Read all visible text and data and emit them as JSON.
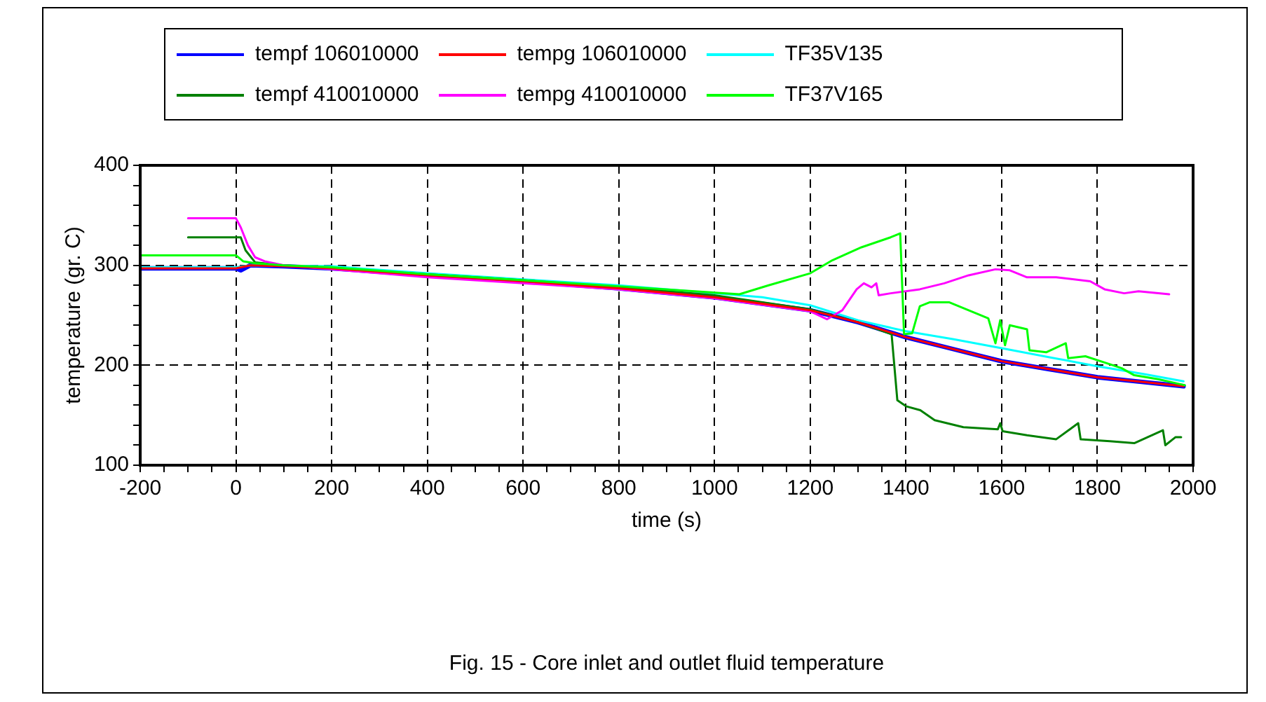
{
  "chart_data": {
    "type": "line",
    "xlabel": "time (s)",
    "ylabel": "temperature (gr. C)",
    "annotations": [
      "Fig. 15 - Core inlet and outlet fluid temperature"
    ],
    "xlim": [
      -200,
      2000
    ],
    "ylim": [
      100,
      400
    ],
    "xticks": [
      -200,
      {
        "value": -150,
        "label": null
      },
      {
        "value": -100,
        "label": null
      },
      {
        "value": -50,
        "label": null
      },
      0,
      {
        "value": 50,
        "label": null
      },
      {
        "value": 100,
        "label": null
      },
      {
        "value": 150,
        "label": null
      },
      200,
      {
        "value": 250,
        "label": null
      },
      {
        "value": 300,
        "label": null
      },
      {
        "value": 350,
        "label": null
      },
      400,
      {
        "value": 450,
        "label": null
      },
      {
        "value": 500,
        "label": null
      },
      {
        "value": 550,
        "label": null
      },
      600,
      {
        "value": 650,
        "label": null
      },
      {
        "value": 700,
        "label": null
      },
      {
        "value": 750,
        "label": null
      },
      800,
      {
        "value": 850,
        "label": null
      },
      {
        "value": 900,
        "label": null
      },
      {
        "value": 950,
        "label": null
      },
      1000,
      {
        "value": 1050,
        "label": null
      },
      {
        "value": 1100,
        "label": null
      },
      {
        "value": 1150,
        "label": null
      },
      1200,
      {
        "value": 1250,
        "label": null
      },
      {
        "value": 1300,
        "label": null
      },
      {
        "value": 1350,
        "label": null
      },
      1400,
      {
        "value": 1450,
        "label": null
      },
      {
        "value": 1500,
        "label": null
      },
      {
        "value": 1550,
        "label": null
      },
      1600,
      {
        "value": 1650,
        "label": null
      },
      {
        "value": 1700,
        "label": null
      },
      {
        "value": 1750,
        "label": null
      },
      1800,
      {
        "value": 1850,
        "label": null
      },
      {
        "value": 1900,
        "label": null
      },
      {
        "value": 1950,
        "label": null
      },
      2000
    ],
    "yticks": [
      100,
      {
        "value": 120,
        "label": null
      },
      {
        "value": 140,
        "label": null
      },
      {
        "value": 160,
        "label": null
      },
      {
        "value": 180,
        "label": null
      },
      200,
      {
        "value": 220,
        "label": null
      },
      {
        "value": 240,
        "label": null
      },
      {
        "value": 260,
        "label": null
      },
      {
        "value": 280,
        "label": null
      },
      300,
      {
        "value": 320,
        "label": null
      },
      {
        "value": 340,
        "label": null
      },
      {
        "value": 360,
        "label": null
      },
      {
        "value": 380,
        "label": null
      },
      400
    ],
    "grid": true,
    "legend": "top",
    "marker": "none",
    "line_style": "solid",
    "series": [
      {
        "name": "tempf 106010000",
        "color": "#0000ff",
        "x": [
          -200,
          0,
          10,
          30,
          100,
          200,
          400,
          600,
          800,
          1000,
          1200,
          1300,
          1400,
          1500,
          1600,
          1700,
          1800,
          1900,
          1980
        ],
        "values": [
          297,
          297,
          295,
          300,
          299,
          297,
          290,
          284,
          277,
          268,
          255,
          243,
          228,
          216,
          204,
          196,
          188,
          183,
          179
        ]
      },
      {
        "name": "tempg 106010000",
        "color": "#ff0000",
        "x": [
          -200,
          0,
          30,
          100,
          200,
          400,
          600,
          800,
          1000,
          1200,
          1300,
          1400,
          1500,
          1600,
          1700,
          1800,
          1900,
          1980
        ],
        "values": [
          297,
          297,
          300,
          299,
          297,
          290,
          284,
          277,
          268,
          255,
          243,
          228,
          216,
          204,
          196,
          188,
          183,
          179
        ]
      },
      {
        "name": "TF35V135",
        "color": "#00ffff",
        "x": [
          -200,
          0,
          30,
          200,
          400,
          600,
          800,
          1000,
          1100,
          1200,
          1300,
          1400,
          1500,
          1600,
          1700,
          1800,
          1900,
          1980
        ],
        "values": [
          298,
          298,
          300,
          299,
          292,
          286,
          280,
          272,
          268,
          260,
          245,
          234,
          226,
          217,
          208,
          199,
          191,
          184
        ]
      },
      {
        "name": "tempf 410010000",
        "color": "#008000",
        "x": [
          -100,
          10,
          20,
          40,
          100,
          200,
          400,
          600,
          800,
          1000,
          1200,
          1300,
          1370,
          1382,
          1400,
          1430,
          1460,
          1520,
          1592,
          1597,
          1602,
          1653,
          1714,
          1760,
          1765,
          1826,
          1877,
          1937,
          1942,
          1963,
          1975
        ],
        "values": [
          328,
          328,
          315,
          303,
          300,
          297,
          291,
          285,
          278,
          270,
          256,
          243,
          231,
          165,
          159,
          155,
          145,
          138,
          136,
          142,
          134,
          130,
          126,
          142,
          126,
          124,
          122,
          135,
          120,
          128,
          128
        ]
      },
      {
        "name": "tempg 410010000",
        "color": "#ff00ff",
        "x": [
          -100,
          0,
          10,
          25,
          40,
          60,
          100,
          200,
          400,
          600,
          800,
          1000,
          1200,
          1235,
          1267,
          1297,
          1312,
          1328,
          1338,
          1343,
          1368,
          1429,
          1480,
          1531,
          1587,
          1617,
          1653,
          1714,
          1785,
          1815,
          1856,
          1886,
          1950
        ],
        "values": [
          347,
          347,
          338,
          320,
          308,
          304,
          300,
          296,
          288,
          282,
          276,
          267,
          254,
          246,
          255,
          276,
          282,
          278,
          282,
          270,
          272,
          276,
          282,
          290,
          296,
          295,
          288,
          288,
          284,
          276,
          272,
          274,
          271
        ]
      },
      {
        "name": "TF37V165",
        "color": "#00ff00",
        "x": [
          -200,
          0,
          15,
          40,
          100,
          200,
          400,
          600,
          800,
          1052,
          1113,
          1200,
          1246,
          1307,
          1368,
          1388,
          1396,
          1413,
          1429,
          1450,
          1490,
          1531,
          1572,
          1587,
          1597,
          1607,
          1617,
          1653,
          1658,
          1693,
          1734,
          1739,
          1775,
          1826,
          1851,
          1877,
          1927,
          1983
        ],
        "values": [
          310,
          310,
          304,
          302,
          300,
          298,
          291,
          285,
          279,
          271,
          280,
          292,
          305,
          318,
          328,
          332,
          231,
          232,
          259,
          263,
          263,
          255,
          247,
          222,
          245,
          220,
          240,
          236,
          215,
          213,
          222,
          207,
          209,
          201,
          197,
          190,
          186,
          180
        ]
      }
    ]
  }
}
